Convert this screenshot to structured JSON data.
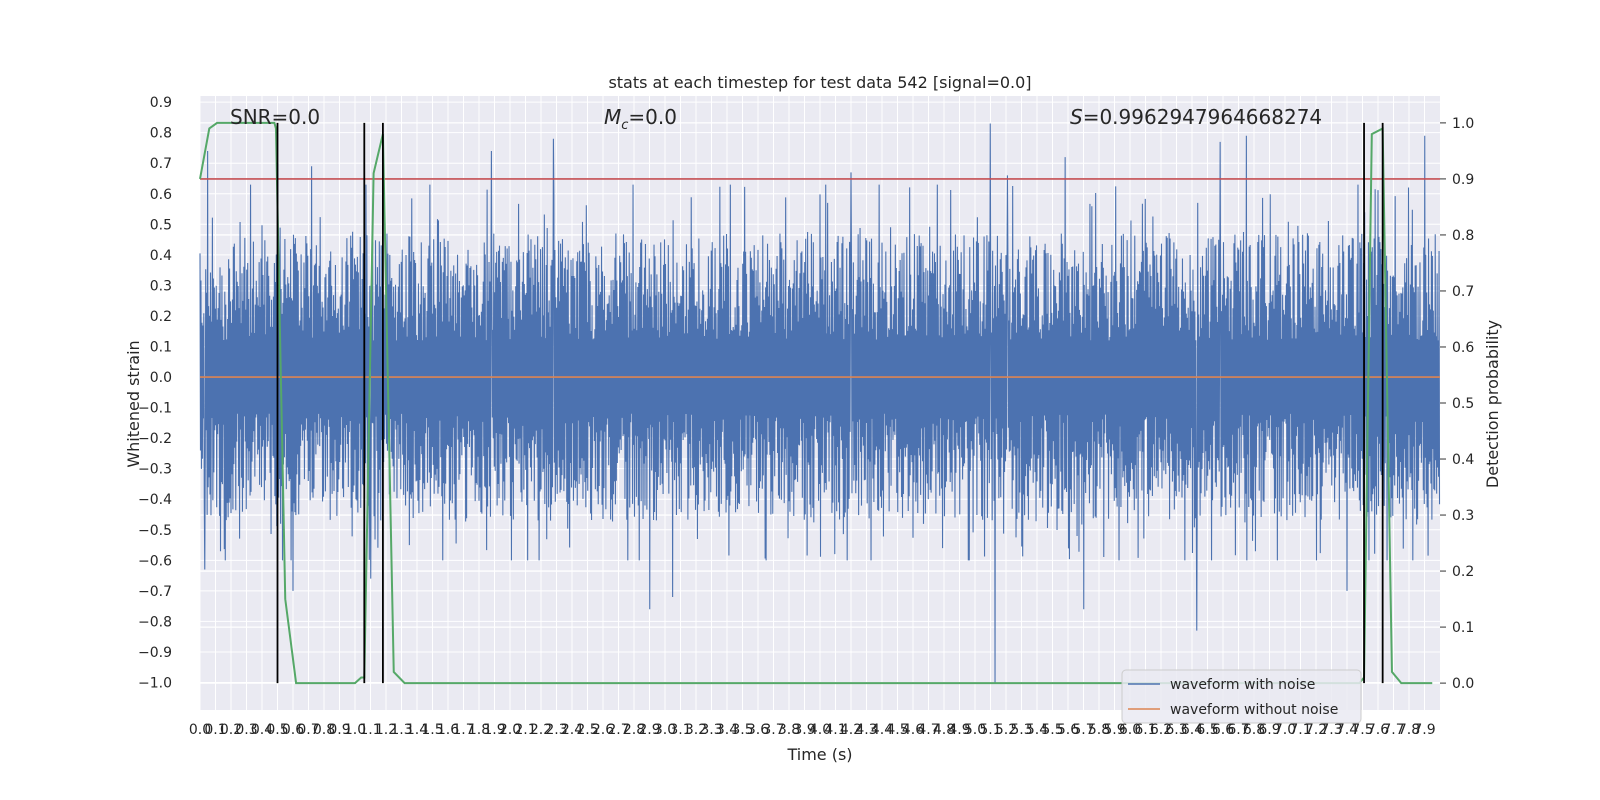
{
  "chart_data": {
    "type": "line",
    "title": "stats at each timestep for test data 542 [signal=0.0]",
    "xlabel": "Time (s)",
    "ylabel": "Whitened strain",
    "y2label": "Detection probability",
    "xlim": [
      0.0,
      8.0
    ],
    "ylim": [
      -1.09,
      0.92
    ],
    "y2lim": [
      -0.048,
      1.048
    ],
    "grid": true,
    "legend_position": "lower-right",
    "x_ticks": [
      "0.0",
      "0.1",
      "0.2",
      "0.3",
      "0.4",
      "0.5",
      "0.6",
      "0.7",
      "0.8",
      "0.9",
      "1.0",
      "1.1",
      "1.2",
      "1.3",
      "1.4",
      "1.5",
      "1.6",
      "1.7",
      "1.8",
      "1.9",
      "2.0",
      "2.1",
      "2.2",
      "2.3",
      "2.4",
      "2.5",
      "2.6",
      "2.7",
      "2.8",
      "2.9",
      "3.0",
      "3.1",
      "3.2",
      "3.3",
      "3.4",
      "3.5",
      "3.6",
      "3.7",
      "3.8",
      "3.9",
      "4.0",
      "4.1",
      "4.2",
      "4.3",
      "4.4",
      "4.5",
      "4.6",
      "4.7",
      "4.8",
      "4.9",
      "5.0",
      "5.1",
      "5.2",
      "5.3",
      "5.4",
      "5.5",
      "5.6",
      "5.7",
      "5.8",
      "5.9",
      "6.0",
      "6.1",
      "6.2",
      "6.3",
      "6.4",
      "6.5",
      "6.6",
      "6.7",
      "6.8",
      "6.9",
      "7.0",
      "7.1",
      "7.2",
      "7.3",
      "7.4",
      "7.5",
      "7.6",
      "7.7",
      "7.8",
      "7.9"
    ],
    "y_ticks": [
      "0.9",
      "0.8",
      "0.7",
      "0.6",
      "0.5",
      "0.4",
      "0.3",
      "0.2",
      "0.1",
      "0.0",
      "−0.1",
      "−0.2",
      "−0.3",
      "−0.4",
      "−0.5",
      "−0.6",
      "−0.7",
      "−0.8",
      "−0.9",
      "−1.0"
    ],
    "y2_ticks": [
      "1.0",
      "0.9",
      "0.8",
      "0.7",
      "0.6",
      "0.5",
      "0.4",
      "0.3",
      "0.2",
      "0.1",
      "0.0"
    ],
    "annotations": {
      "snr": "SNR=0.0",
      "mc_symbol": "M",
      "mc_subscript": "c",
      "mc_value": "=0.0",
      "s_symbol": "S",
      "s_value": "=0.9962947964668274"
    },
    "series": [
      {
        "name": "waveform with noise",
        "color": "#4c72b0",
        "typical_amplitude": [
          -0.45,
          0.48
        ],
        "peaks": [
          {
            "x": 0.05,
            "y": 0.74
          },
          {
            "x": 0.5,
            "y": 0.7
          },
          {
            "x": 0.72,
            "y": 0.69
          },
          {
            "x": 1.88,
            "y": 0.74
          },
          {
            "x": 2.28,
            "y": 0.78
          },
          {
            "x": 4.2,
            "y": 0.67
          },
          {
            "x": 5.1,
            "y": 0.83
          },
          {
            "x": 5.21,
            "y": 0.66
          },
          {
            "x": 5.58,
            "y": 0.72
          },
          {
            "x": 6.58,
            "y": 0.77
          },
          {
            "x": 6.75,
            "y": 0.79
          },
          {
            "x": 7.9,
            "y": 0.79
          }
        ],
        "troughs": [
          {
            "x": 0.03,
            "y": -0.63
          },
          {
            "x": 0.6,
            "y": -0.7
          },
          {
            "x": 1.1,
            "y": -0.66
          },
          {
            "x": 2.9,
            "y": -0.76
          },
          {
            "x": 3.05,
            "y": -0.72
          },
          {
            "x": 5.13,
            "y": -1.0
          },
          {
            "x": 5.7,
            "y": -0.76
          },
          {
            "x": 6.43,
            "y": -0.83
          },
          {
            "x": 7.4,
            "y": -0.7
          }
        ]
      },
      {
        "name": "waveform without noise",
        "color": "#dd8452",
        "constant_value": 0.0
      },
      {
        "name": "detection probability",
        "color": "#55a868",
        "axis": "right",
        "x": [
          0.0,
          0.06,
          0.11,
          0.48,
          0.49,
          0.55,
          0.62,
          1.0,
          1.04,
          1.06,
          1.12,
          1.18,
          1.25,
          1.32,
          7.48,
          7.51,
          7.56,
          7.63,
          7.69,
          7.75,
          7.79,
          7.86,
          7.95
        ],
        "values": [
          0.9,
          0.99,
          1.0,
          1.0,
          0.99,
          0.15,
          0.0,
          0.0,
          0.01,
          0.01,
          0.91,
          0.98,
          0.02,
          0.0,
          0.0,
          0.01,
          0.98,
          0.99,
          0.02,
          0.0,
          0.0,
          0.0,
          0.0
        ]
      }
    ],
    "threshold": {
      "axis": "right",
      "value": 0.9,
      "color": "#c44e52"
    },
    "vertical_markers": {
      "x": [
        0.5,
        1.06,
        1.18,
        7.51,
        7.63
      ],
      "color": "#000000"
    }
  },
  "legend": {
    "items": [
      {
        "label": "waveform with noise",
        "color": "#4c72b0"
      },
      {
        "label": "waveform without noise",
        "color": "#dd8452"
      }
    ]
  }
}
